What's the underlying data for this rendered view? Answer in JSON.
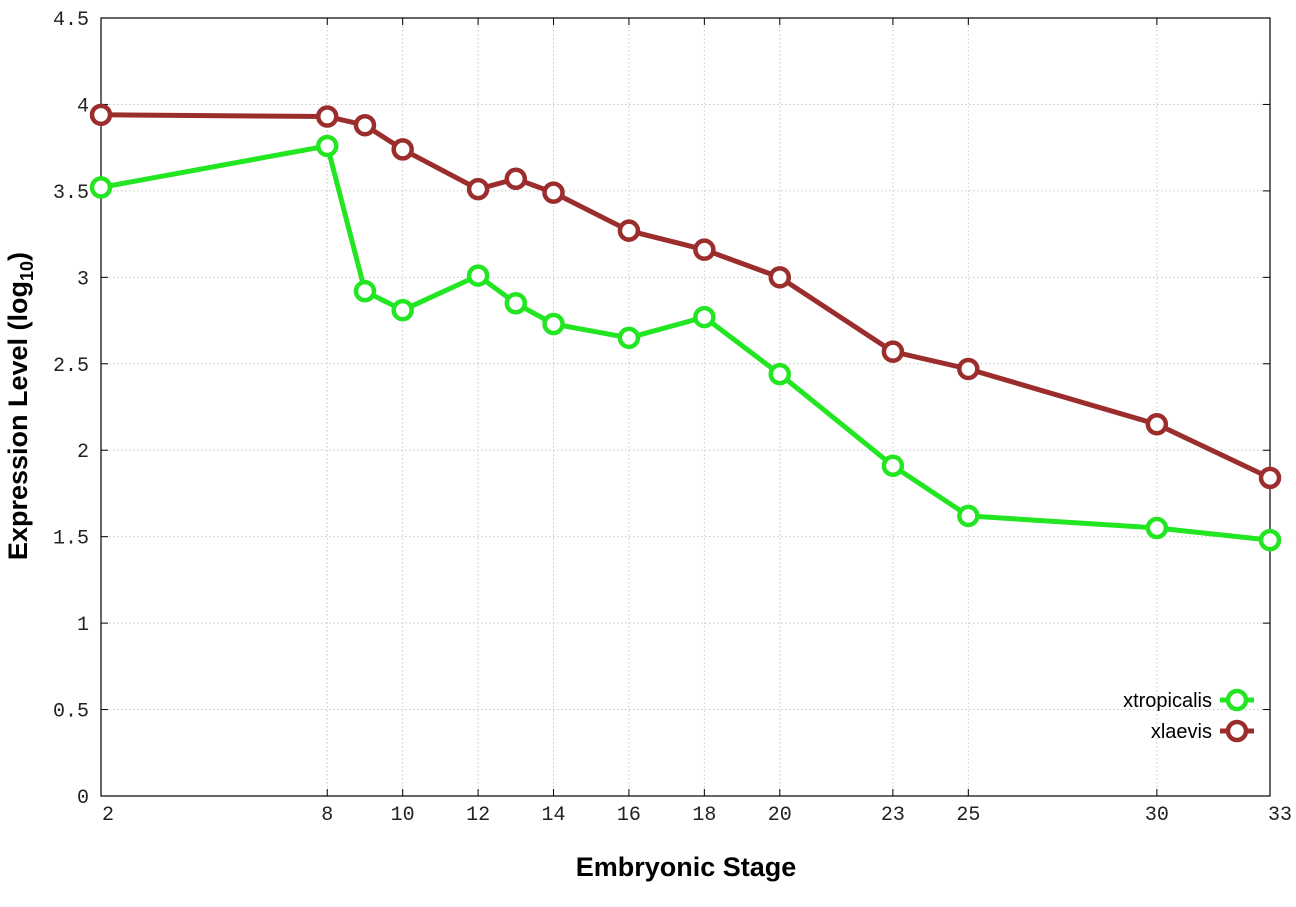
{
  "chart_data": {
    "type": "line",
    "xlabel": "Embryonic Stage",
    "ylabel_main": "Expression Level (log",
    "ylabel_sub": "10",
    "ylabel_close": ")",
    "x": [
      2,
      8,
      9,
      10,
      12,
      13,
      14,
      16,
      18,
      20,
      23,
      25,
      30,
      33
    ],
    "xticks": [
      "2",
      "8",
      "10",
      "12",
      "14",
      "16",
      "18",
      "20",
      "23",
      "25",
      "30",
      "33"
    ],
    "xtick_values": [
      2,
      8,
      10,
      12,
      14,
      16,
      18,
      20,
      23,
      25,
      30,
      33
    ],
    "xlim": [
      2,
      33
    ],
    "ylim": [
      0,
      4.5
    ],
    "yticks": [
      "0",
      "0.5",
      "1",
      "1.5",
      "2",
      "2.5",
      "3",
      "3.5",
      "4",
      "4.5"
    ],
    "ytick_values": [
      0,
      0.5,
      1,
      1.5,
      2,
      2.5,
      3,
      3.5,
      4,
      4.5
    ],
    "grid": true,
    "legend_position": "bottom-right",
    "series": [
      {
        "name": "xtropicalis",
        "color": "#22e622",
        "values": [
          3.52,
          3.76,
          2.92,
          2.81,
          3.01,
          2.85,
          2.73,
          2.65,
          2.77,
          2.44,
          1.91,
          1.62,
          1.55,
          1.48
        ]
      },
      {
        "name": "xlaevis",
        "color": "#9b2d2d",
        "values": [
          3.94,
          3.93,
          3.88,
          3.74,
          3.51,
          3.57,
          3.49,
          3.27,
          3.16,
          3.0,
          2.57,
          2.47,
          2.15,
          1.84
        ]
      }
    ]
  }
}
